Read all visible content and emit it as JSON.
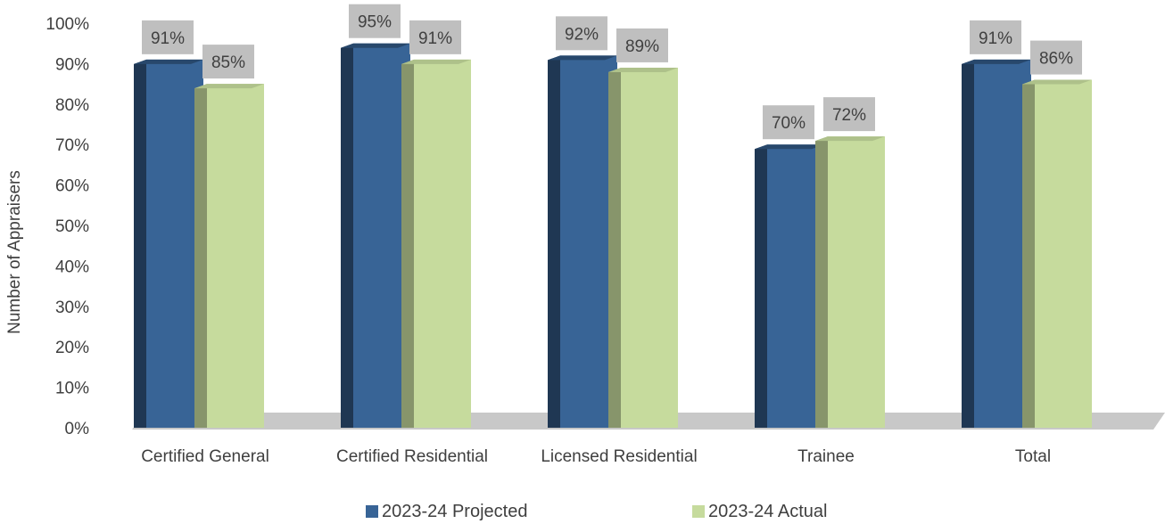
{
  "chart_data": {
    "type": "bar",
    "title": "",
    "xlabel": "",
    "ylabel": "Number of Appraisers",
    "ylim": [
      0,
      100
    ],
    "yticks": [
      "0%",
      "10%",
      "20%",
      "30%",
      "40%",
      "50%",
      "60%",
      "70%",
      "80%",
      "90%",
      "100%"
    ],
    "categories": [
      "Certified General",
      "Certified Residential",
      "Licensed Residential",
      "Trainee",
      "Total"
    ],
    "series": [
      {
        "name": "2023-24 Projected",
        "values": [
          91,
          95,
          92,
          70,
          91
        ],
        "labels": [
          "91%",
          "95%",
          "92%",
          "70%",
          "91%"
        ],
        "color": "#386496"
      },
      {
        "name": "2023-24 Actual",
        "values": [
          85,
          91,
          89,
          72,
          86
        ],
        "labels": [
          "85%",
          "91%",
          "89%",
          "72%",
          "86%"
        ],
        "color": "#c6db9d"
      }
    ],
    "grid": false,
    "legend_position": "bottom",
    "style": "3d-clustered-column",
    "data_label_background": "#bfbfbf",
    "floor_color": "#c8c8c8"
  }
}
